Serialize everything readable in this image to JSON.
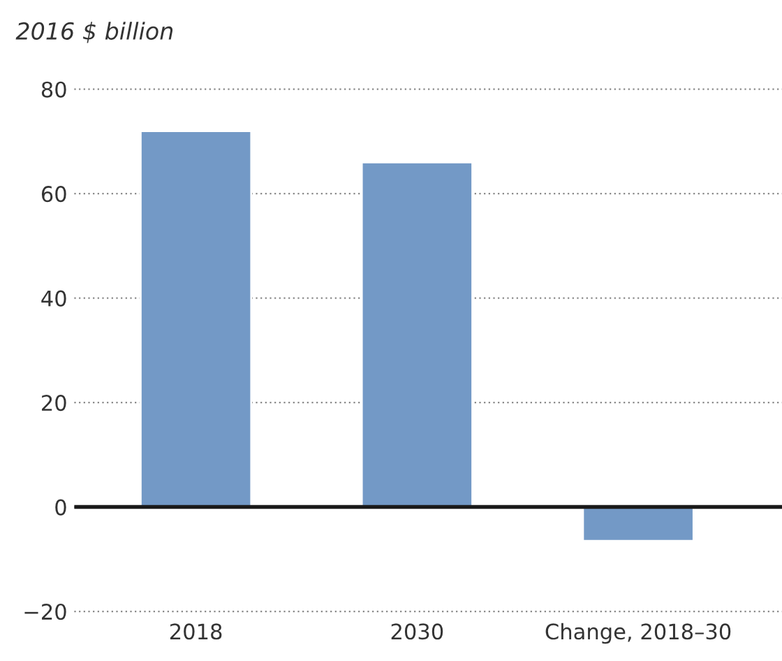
{
  "chart_data": {
    "type": "bar",
    "ylabel": "2016 $ billion",
    "categories": [
      "2018",
      "2030",
      "Change, 2018–30"
    ],
    "values": [
      72,
      66,
      -6.5
    ],
    "color": "#7399c6",
    "ylim": [
      -20,
      80
    ],
    "yticks": [
      {
        "value": -20,
        "label": "−20"
      },
      0,
      20,
      40,
      60,
      80
    ],
    "grid": "y",
    "ref_lines": [
      {
        "axis": "y",
        "value": 0,
        "color": "#1a1a1a"
      }
    ]
  }
}
